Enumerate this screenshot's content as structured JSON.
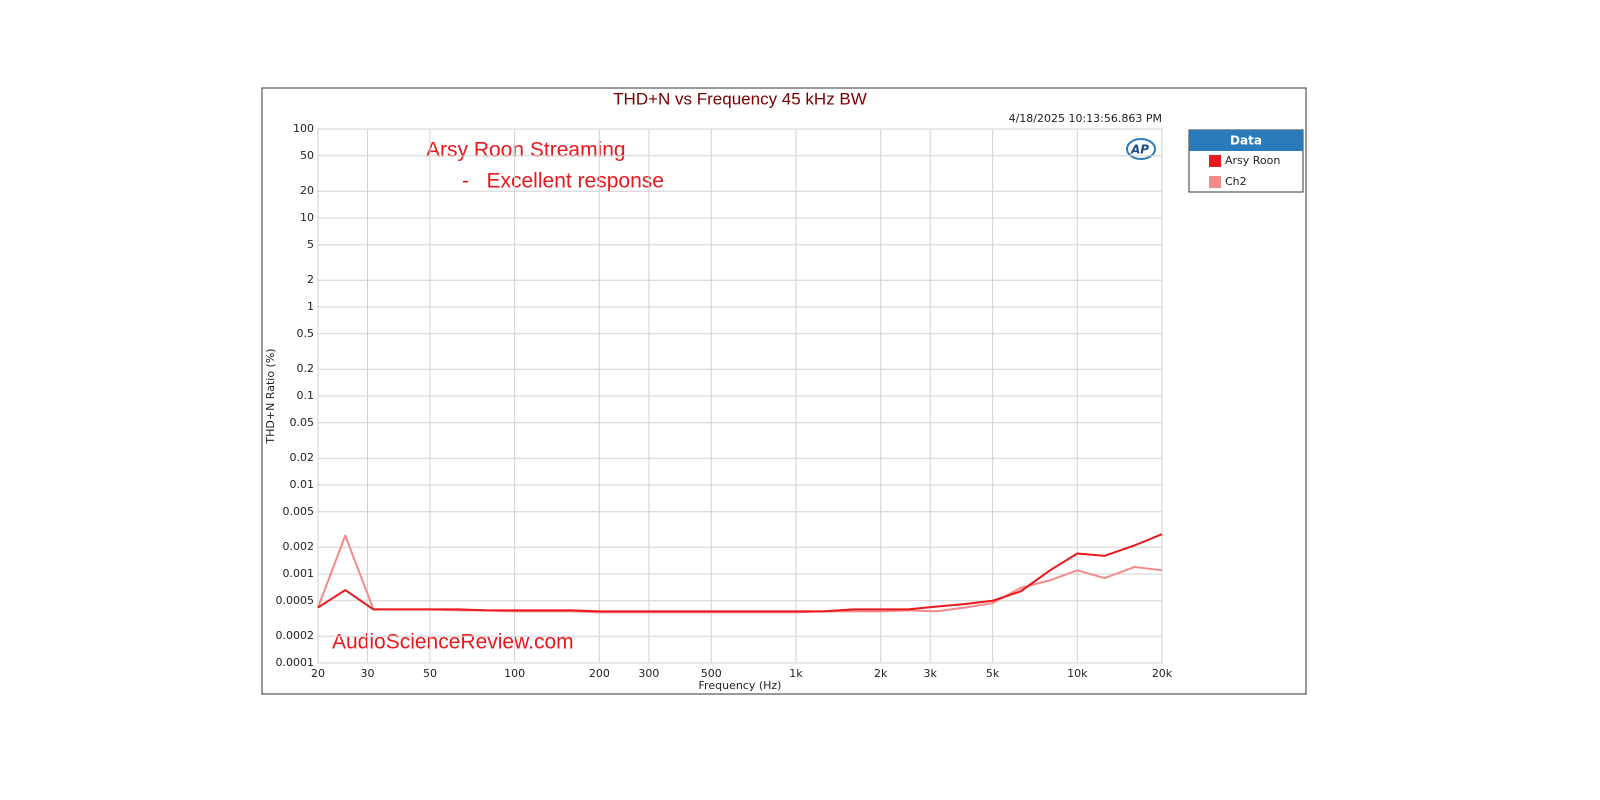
{
  "chart_data": {
    "type": "line",
    "title": "THD+N vs Frequency 45 kHz BW",
    "timestamp": "4/18/2025 10:13:56.863 PM",
    "annotations": [
      "Arsy Roon Streaming",
      "-   Excellent response",
      "AudioScienceReview.com"
    ],
    "logo": "AP",
    "x_label": "Frequency (Hz)",
    "y_label": "THD+N Ratio (%)",
    "xscale": "log",
    "yscale": "log",
    "grid": true,
    "legend_title": "Data",
    "legend_position": "outside-right",
    "xlim": [
      20,
      20000
    ],
    "ylim": [
      0.0001,
      100
    ],
    "xticks": [
      20,
      30,
      50,
      100,
      200,
      300,
      500,
      {
        "value": 1000,
        "label": "1k"
      },
      {
        "value": 2000,
        "label": "2k"
      },
      {
        "value": 3000,
        "label": "3k"
      },
      {
        "value": 5000,
        "label": "5k"
      },
      {
        "value": 10000,
        "label": "10k"
      },
      {
        "value": 20000,
        "label": "20k"
      }
    ],
    "yticks": [
      100,
      50,
      20,
      10,
      5,
      2,
      1,
      0.5,
      0.2,
      0.1,
      0.05,
      0.02,
      0.01,
      0.005,
      0.002,
      0.001,
      0.0005,
      0.0002,
      0.0001
    ],
    "x": [
      20,
      25,
      31.5,
      40,
      50,
      63,
      80,
      100,
      125,
      160,
      200,
      250,
      315,
      400,
      500,
      630,
      800,
      1000,
      1250,
      1600,
      2000,
      2500,
      3150,
      4000,
      5000,
      6300,
      8000,
      10000,
      12500,
      16000,
      20000
    ],
    "series": [
      {
        "name": "Arsy Roon",
        "color": "#e8181c",
        "values": [
          0.00042,
          0.00066,
          0.0004,
          0.0004,
          0.0004,
          0.0004,
          0.00039,
          0.00039,
          0.00039,
          0.00039,
          0.00038,
          0.00038,
          0.00038,
          0.00038,
          0.00038,
          0.00038,
          0.00038,
          0.00038,
          0.00038,
          0.0004,
          0.0004,
          0.0004,
          0.00043,
          0.00046,
          0.0005,
          0.00064,
          0.0011,
          0.0017,
          0.0016,
          0.0021,
          0.0028
        ]
      },
      {
        "name": "Ch2",
        "color": "#f58a8a",
        "values": [
          0.00042,
          0.0027,
          0.0004,
          0.0004,
          0.0004,
          0.00039,
          0.00039,
          0.00038,
          0.00038,
          0.00038,
          0.00037,
          0.00037,
          0.00037,
          0.00037,
          0.00037,
          0.00037,
          0.00037,
          0.00037,
          0.00038,
          0.00038,
          0.00038,
          0.00039,
          0.00038,
          0.00042,
          0.00047,
          0.0007,
          0.00085,
          0.0011,
          0.0009,
          0.0012,
          0.0011
        ]
      }
    ]
  }
}
